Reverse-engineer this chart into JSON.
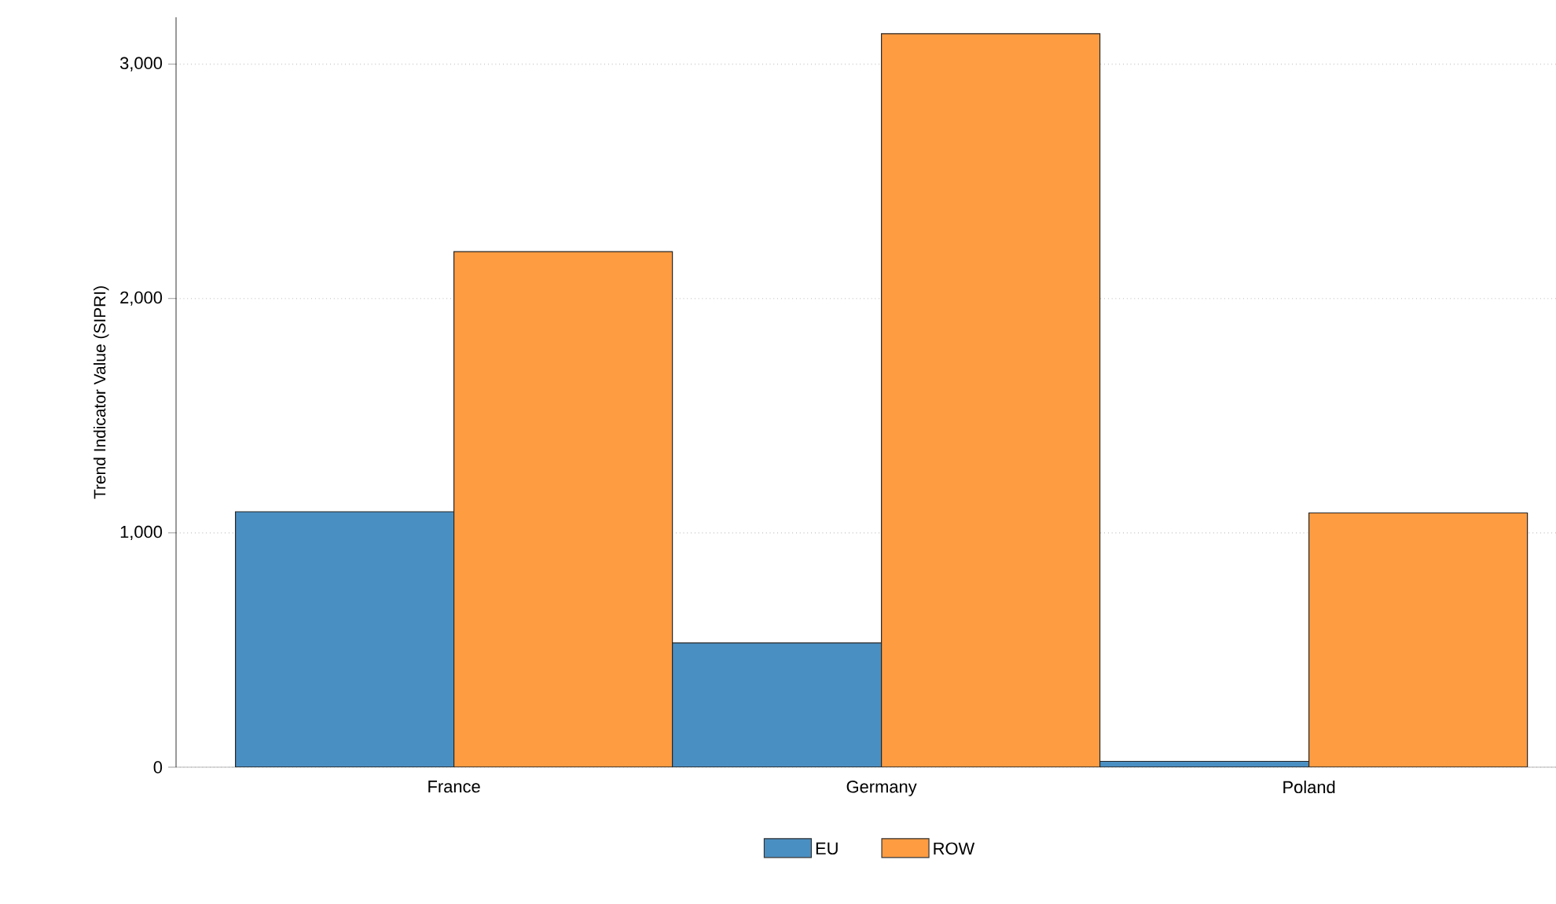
{
  "chart_data": {
    "type": "bar",
    "ylabel": "Trend Indicator Value (SIPRI)",
    "categories": [
      "France",
      "Germany",
      "Poland"
    ],
    "series": [
      {
        "name": "EU",
        "color": "#4a8fc2",
        "values": [
          1090,
          530,
          25
        ]
      },
      {
        "name": "ROW",
        "color": "#fe9c42",
        "values": [
          2200,
          3130,
          1085
        ]
      }
    ],
    "ylim": [
      0,
      3200
    ],
    "yticks": [
      {
        "value": 0,
        "label": "0"
      },
      {
        "value": 1000,
        "label": "1,000"
      },
      {
        "value": 2000,
        "label": "2,000"
      },
      {
        "value": 3000,
        "label": "3,000"
      }
    ],
    "grid": "y",
    "legend": "bottom"
  }
}
